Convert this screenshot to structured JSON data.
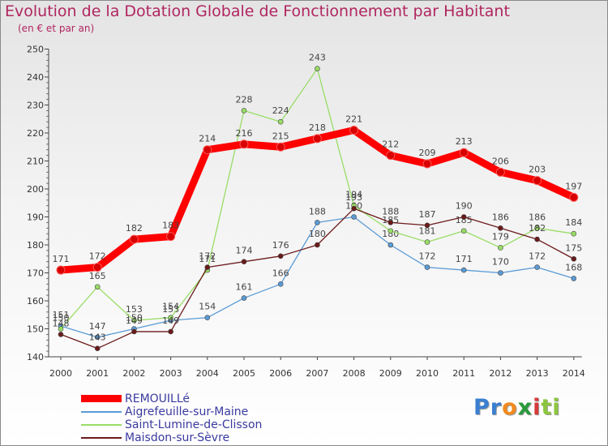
{
  "chart_data": {
    "type": "line",
    "title": "Evolution de la Dotation Globale de Fonctionnement par Habitant",
    "subtitle": "(en € et par an)",
    "x": [
      "2000",
      "2001",
      "2002",
      "2003",
      "2004",
      "2005",
      "2006",
      "2007",
      "2008",
      "2009",
      "2010",
      "2011",
      "2012",
      "2013",
      "2014"
    ],
    "ylim": [
      140,
      250
    ],
    "yticks": [
      140,
      150,
      160,
      170,
      180,
      190,
      200,
      210,
      220,
      230,
      240,
      250
    ],
    "grid": false,
    "legend_position": "bottom-left",
    "series": [
      {
        "name": "REMOUILLé",
        "color": "#ff0000",
        "values": [
          171,
          172,
          182,
          183,
          214,
          216,
          215,
          218,
          221,
          212,
          209,
          213,
          206,
          203,
          197
        ]
      },
      {
        "name": "Aigrefeuille-sur-Maine",
        "color": "#5b9bd5",
        "values": [
          151,
          147,
          150,
          153,
          154,
          161,
          166,
          188,
          190,
          180,
          172,
          171,
          170,
          172,
          168
        ]
      },
      {
        "name": "Saint-Lumine-de-Clisson",
        "color": "#99dd66",
        "values": [
          150,
          165,
          153,
          154,
          171,
          228,
          224,
          243,
          194,
          185,
          181,
          185,
          179,
          186,
          184
        ]
      },
      {
        "name": "Maisdon-sur-Sèvre",
        "color": "#6b1a1a",
        "values": [
          148,
          143,
          149,
          149,
          172,
          174,
          176,
          180,
          193,
          188,
          187,
          190,
          186,
          182,
          175
        ]
      }
    ]
  },
  "logo": {
    "parts": [
      "Pr",
      "o",
      "x",
      "i",
      "ti"
    ],
    "colors": [
      "#3a7fd0",
      "#f28a1e",
      "#2a9a3a",
      "#d53a3a",
      "#8cc63f"
    ]
  }
}
